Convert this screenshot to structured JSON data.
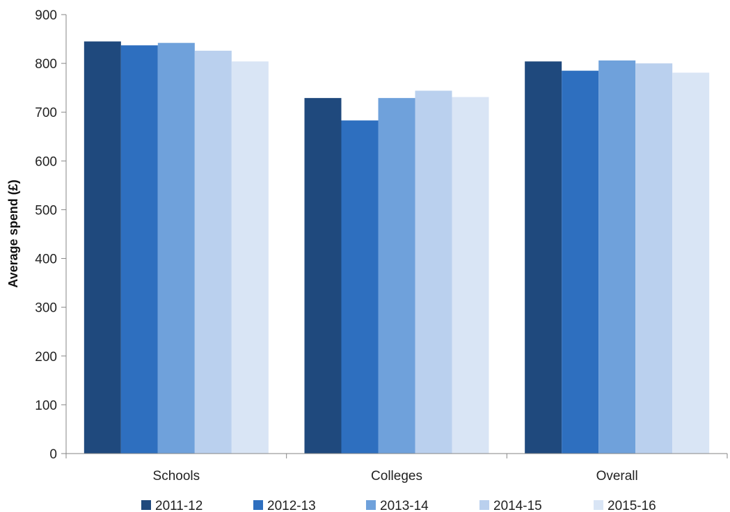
{
  "chart_data": {
    "type": "bar",
    "title": "",
    "xlabel": "",
    "ylabel": "Average spend (£)",
    "ylim": [
      0,
      900
    ],
    "yticks": [
      0,
      100,
      200,
      300,
      400,
      500,
      600,
      700,
      800,
      900
    ],
    "grid": false,
    "legend": "bottom",
    "categories": [
      "Schools",
      "Colleges",
      "Overall"
    ],
    "series": [
      {
        "name": "2011-12",
        "color": "#1f497d",
        "values": [
          845,
          729,
          804
        ]
      },
      {
        "name": "2012-13",
        "color": "#2e6fbf",
        "values": [
          837,
          683,
          785
        ]
      },
      {
        "name": "2013-14",
        "color": "#6fa1db",
        "values": [
          842,
          729,
          806
        ]
      },
      {
        "name": "2014-15",
        "color": "#bad0ee",
        "values": [
          826,
          744,
          800
        ]
      },
      {
        "name": "2015-16",
        "color": "#d9e5f5",
        "values": [
          804,
          731,
          781
        ]
      }
    ]
  }
}
